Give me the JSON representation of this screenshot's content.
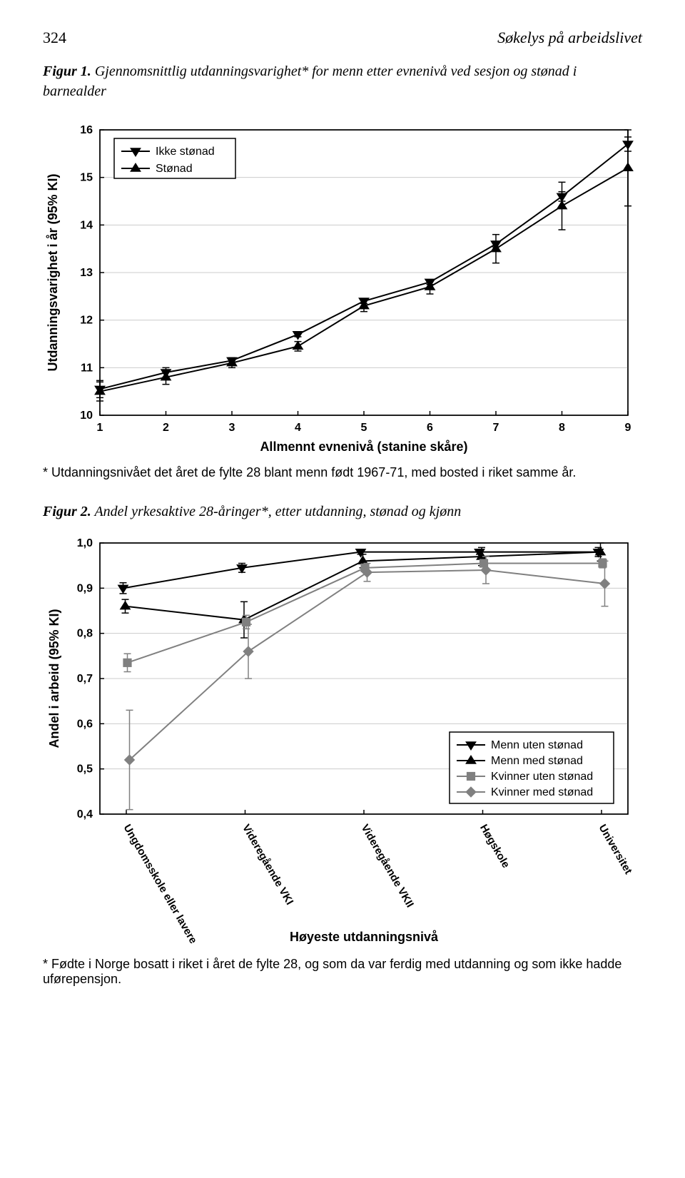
{
  "page_number": "324",
  "journal_title": "Søkelys på arbeidslivet",
  "figure1": {
    "label": "Figur 1.",
    "title_rest": " Gjennomsnittlig utdanningsvarighet* for menn etter evnenivå ved sesjon og stønad i barnealder",
    "footnote": "* Utdanningsnivået det året de fylte 28 blant menn født 1967-71, med bosted i riket samme år.",
    "ylabel": "Utdanningsvarighet i år (95% KI)",
    "xlabel": "Allmennt evnenivå (stanine skåre)",
    "yticks": [
      10,
      11,
      12,
      13,
      14,
      15,
      16
    ],
    "xticks": [
      1,
      2,
      3,
      4,
      5,
      6,
      7,
      8,
      9
    ],
    "legend": [
      "Ikke stønad",
      "Stønad"
    ],
    "series": [
      {
        "name": "Ikke stønad",
        "marker": "tri-down",
        "color": "#000000",
        "x": [
          1,
          2,
          3,
          4,
          5,
          6,
          7,
          8,
          9
        ],
        "y": [
          10.55,
          10.9,
          11.15,
          11.7,
          12.4,
          12.8,
          13.6,
          14.6,
          15.7
        ],
        "err": [
          0.18,
          0.1,
          0.06,
          0.05,
          0.05,
          0.05,
          0.06,
          0.1,
          0.15
        ]
      },
      {
        "name": "Stønad",
        "marker": "tri-up",
        "color": "#000000",
        "x": [
          1,
          2,
          3,
          4,
          5,
          6,
          7,
          8,
          9
        ],
        "y": [
          10.5,
          10.8,
          11.1,
          11.45,
          12.3,
          12.7,
          13.5,
          14.4,
          15.2
        ],
        "err": [
          0.2,
          0.15,
          0.1,
          0.1,
          0.12,
          0.15,
          0.3,
          0.5,
          0.8
        ]
      }
    ],
    "grid_color": "#cccccc",
    "background": "#ffffff"
  },
  "figure2": {
    "label": "Figur 2.",
    "title_rest": " Andel yrkesaktive 28-åringer*, etter utdanning, stønad og kjønn",
    "footnote": "* Fødte i Norge bosatt i riket i året de fylte 28, og som da var ferdig med utdanning og som ikke hadde uførepensjon.",
    "ylabel": "Andel i arbeid (95% KI)",
    "xlabel": "Høyeste utdanningsnivå",
    "yticks": [
      0.4,
      0.5,
      0.6,
      0.7,
      0.8,
      0.9,
      1.0
    ],
    "xticks": [
      "Ungdomsskole eller lavere",
      "Videregående VKI",
      "Videregående VKII",
      "Høgskole",
      "Universitet"
    ],
    "legend": [
      "Menn uten stønad",
      "Menn med stønad",
      "Kvinner uten stønad",
      "Kvinner med stønad"
    ],
    "series": [
      {
        "name": "Menn uten stønad",
        "marker": "tri-down",
        "color": "#000000",
        "y": [
          0.9,
          0.945,
          0.98,
          0.98,
          0.98
        ],
        "err": [
          0.012,
          0.01,
          0.005,
          0.005,
          0.01
        ]
      },
      {
        "name": "Menn med stønad",
        "marker": "tri-up",
        "color": "#000000",
        "y": [
          0.86,
          0.83,
          0.96,
          0.97,
          0.98
        ],
        "err": [
          0.015,
          0.04,
          0.015,
          0.02,
          0.02
        ]
      },
      {
        "name": "Kvinner uten stønad",
        "marker": "square",
        "color": "#808080",
        "y": [
          0.735,
          0.825,
          0.945,
          0.955,
          0.955
        ],
        "err": [
          0.02,
          0.015,
          0.008,
          0.008,
          0.01
        ]
      },
      {
        "name": "Kvinner med stønad",
        "marker": "diamond",
        "color": "#808080",
        "y": [
          0.52,
          0.76,
          0.935,
          0.94,
          0.91
        ],
        "err": [
          0.11,
          0.06,
          0.02,
          0.03,
          0.05
        ]
      }
    ],
    "grid_color": "#cccccc",
    "background": "#ffffff"
  }
}
